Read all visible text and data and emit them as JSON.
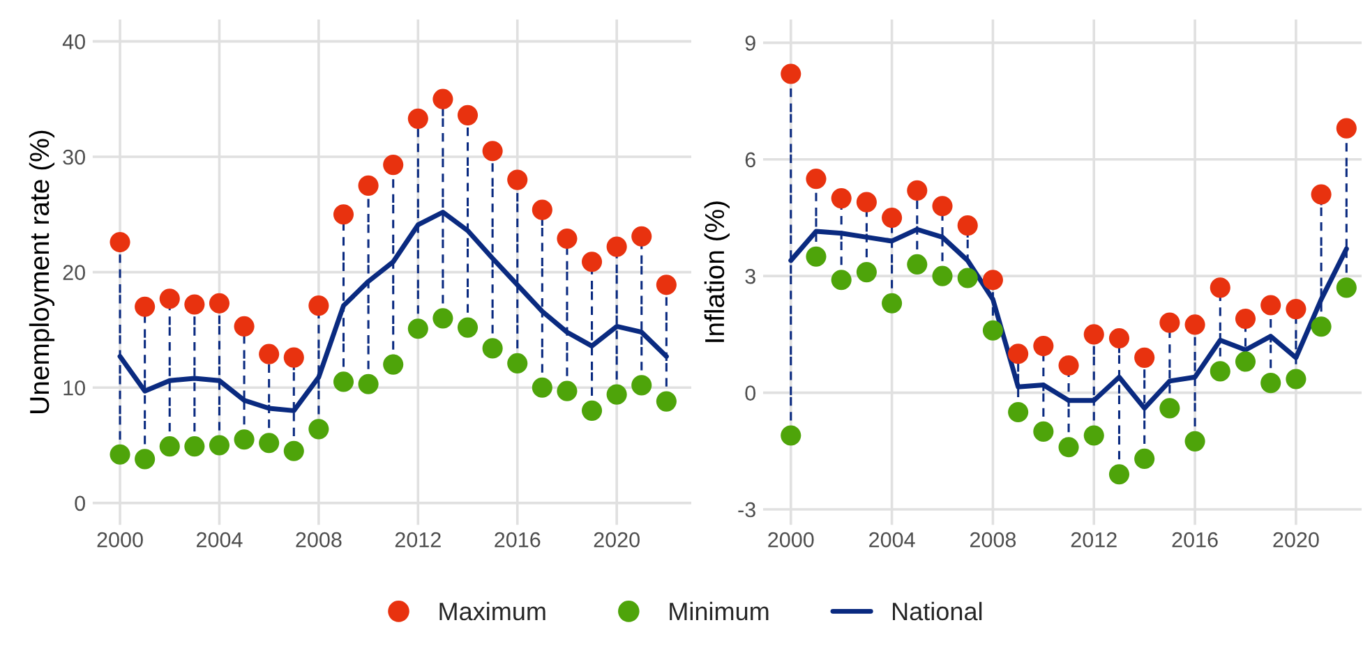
{
  "chart_data": [
    {
      "type": "scatter",
      "ylabel": "Unemployment rate (%)",
      "xlim": [
        1998.9,
        2023.0
      ],
      "xticks": [
        2000,
        2004,
        2008,
        2012,
        2016,
        2020
      ],
      "ylim": [
        -1.9,
        41.9
      ],
      "yticks": [
        0,
        10,
        20,
        30,
        40
      ],
      "grid": true,
      "legend": "bottom",
      "x": [
        2000,
        2001,
        2002,
        2003,
        2004,
        2005,
        2006,
        2007,
        2008,
        2009,
        2010,
        2011,
        2012,
        2013,
        2014,
        2015,
        2016,
        2017,
        2018,
        2019,
        2020,
        2021,
        2022
      ],
      "series": [
        {
          "name": "Maximum",
          "color": "#e8320f",
          "marker": "circle",
          "values": [
            22.6,
            17.0,
            17.7,
            17.2,
            17.3,
            15.3,
            12.9,
            12.6,
            17.1,
            25.0,
            27.5,
            29.3,
            33.3,
            35.0,
            33.6,
            30.5,
            28.0,
            25.4,
            22.9,
            20.9,
            22.2,
            23.1,
            18.9
          ]
        },
        {
          "name": "Minimum",
          "color": "#4ea40a",
          "marker": "circle",
          "values": [
            4.2,
            3.8,
            4.9,
            4.9,
            5.0,
            5.5,
            5.2,
            4.5,
            6.4,
            10.5,
            10.3,
            12.0,
            15.1,
            16.0,
            15.2,
            13.4,
            12.1,
            10.0,
            9.7,
            8.0,
            9.4,
            10.2,
            8.8
          ]
        },
        {
          "name": "National",
          "type": "line",
          "color": "#0a2a80",
          "values": [
            12.7,
            9.7,
            10.6,
            10.8,
            10.6,
            8.9,
            8.2,
            8.0,
            10.9,
            17.1,
            19.2,
            20.9,
            24.1,
            25.2,
            23.6,
            21.2,
            18.9,
            16.6,
            14.8,
            13.6,
            15.3,
            14.8,
            12.7
          ]
        }
      ]
    },
    {
      "type": "scatter",
      "ylabel": "Inflation (%)",
      "xlim": [
        1998.9,
        2022.6
      ],
      "xticks": [
        2000,
        2004,
        2008,
        2012,
        2016,
        2020
      ],
      "ylim": [
        -3.4,
        9.6
      ],
      "yticks": [
        -3,
        0,
        3,
        6,
        9
      ],
      "grid": true,
      "legend": "bottom",
      "x": [
        2000,
        2001,
        2002,
        2003,
        2004,
        2005,
        2006,
        2007,
        2008,
        2009,
        2010,
        2011,
        2012,
        2013,
        2014,
        2015,
        2016,
        2017,
        2018,
        2019,
        2020,
        2021,
        2022
      ],
      "series": [
        {
          "name": "Maximum",
          "color": "#e8320f",
          "marker": "circle",
          "values": [
            8.2,
            5.5,
            5.0,
            4.9,
            4.5,
            5.2,
            4.8,
            4.3,
            2.9,
            1.0,
            1.2,
            0.7,
            1.5,
            1.4,
            0.9,
            1.8,
            1.75,
            2.7,
            1.9,
            2.25,
            2.15,
            5.1,
            6.8
          ]
        },
        {
          "name": "Minimum",
          "color": "#4ea40a",
          "marker": "circle",
          "values": [
            -1.1,
            3.5,
            2.9,
            3.1,
            2.3,
            3.3,
            3.0,
            2.95,
            1.6,
            -0.5,
            -1.0,
            -1.4,
            -1.1,
            -2.1,
            -1.7,
            -0.4,
            -1.25,
            0.55,
            0.8,
            0.25,
            0.35,
            1.7,
            2.7
          ]
        },
        {
          "name": "National",
          "type": "line",
          "color": "#0a2a80",
          "values": [
            3.4,
            4.15,
            4.1,
            4.0,
            3.9,
            4.2,
            4.0,
            3.4,
            2.4,
            0.15,
            0.2,
            -0.2,
            -0.2,
            0.4,
            -0.4,
            0.3,
            0.4,
            1.35,
            1.1,
            1.45,
            0.9,
            2.4,
            3.7
          ]
        }
      ]
    }
  ]
}
